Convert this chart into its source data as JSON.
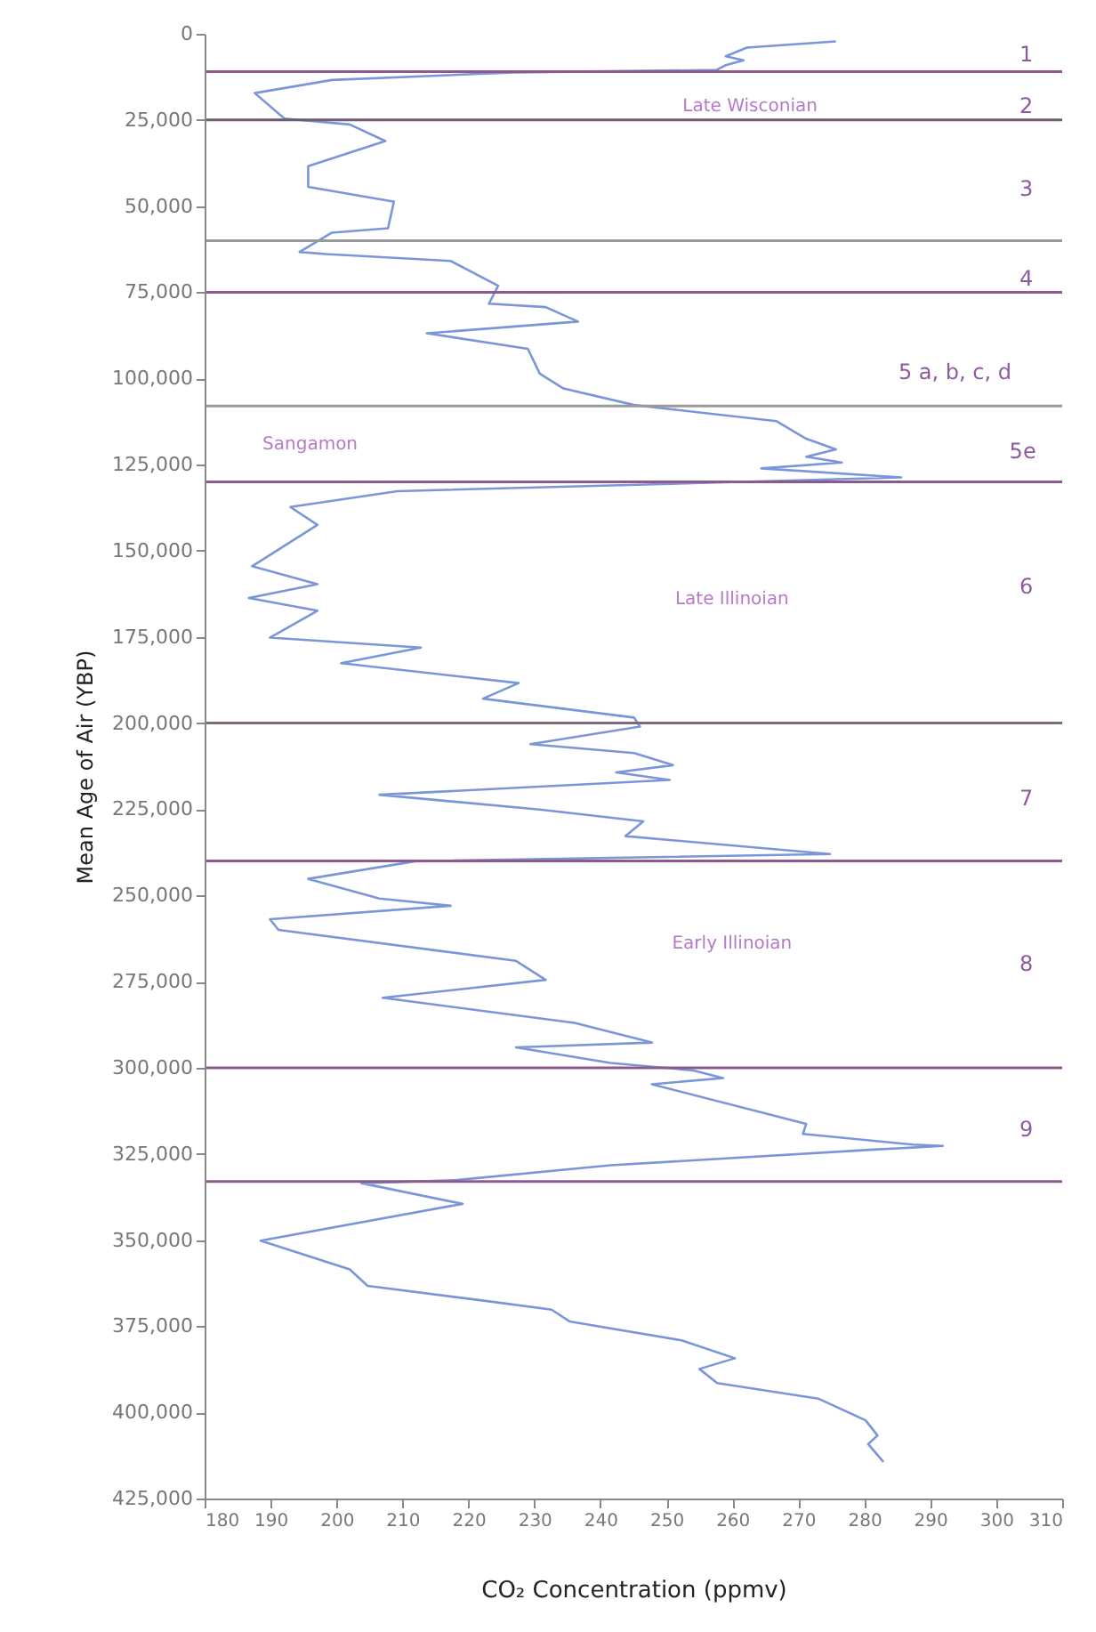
{
  "chart_data": {
    "type": "line",
    "xlabel": "CO₂ Concentration (ppmv)",
    "ylabel": "Mean Age of Air (YBP)",
    "color": "#7b96d8",
    "x": [
      275.7,
      262.2,
      259,
      261.7,
      259,
      257.6,
      227,
      199.3,
      187.6,
      192.1,
      202,
      207.4,
      195.7,
      195.7,
      207.8,
      208.7,
      207.8,
      199.3,
      194.4,
      198.4,
      217.3,
      224.5,
      223.1,
      231.7,
      236.6,
      213.7,
      229,
      230.8,
      234.4,
      245.1,
      266.7,
      271.2,
      275.7,
      271.2,
      276.6,
      264.4,
      285.6,
      254.1,
      209.2,
      193,
      197.1,
      187.2,
      197.1,
      186.7,
      197.1,
      189.9,
      212.8,
      200.7,
      227.6,
      222.2,
      245.1,
      246,
      229.4,
      245.1,
      251,
      242.4,
      250.5,
      206.5,
      230.8,
      246.5,
      243.8,
      274.8,
      211.9,
      195.7,
      206.5,
      217.3,
      189.9,
      191.2,
      227.2,
      231.7,
      207,
      236.1,
      247.8,
      227.2,
      241.5,
      254.1,
      258.6,
      247.8,
      271.2,
      270.7,
      287.4,
      291.9,
      282,
      241.5,
      218.2,
      203.8,
      219.1,
      188.5,
      202,
      204.7,
      223.6,
      232.6,
      235.3,
      252.3,
      260.4,
      255,
      257.7,
      273,
      280.2,
      282,
      280.6,
      282.9
    ],
    "values": [
      2200,
      4000,
      6500,
      7700,
      9100,
      10500,
      11200,
      13400,
      17200,
      24600,
      26300,
      31100,
      38400,
      44400,
      48400,
      48700,
      56400,
      57700,
      63300,
      63900,
      65900,
      73100,
      78300,
      79300,
      83500,
      86900,
      91400,
      98600,
      102900,
      107700,
      112400,
      117500,
      120600,
      122700,
      124400,
      126100,
      128700,
      130400,
      132700,
      137300,
      142500,
      154500,
      159700,
      163700,
      167400,
      175200,
      178100,
      182600,
      188400,
      192900,
      198400,
      201000,
      206100,
      208700,
      212200,
      214300,
      216500,
      220800,
      225100,
      228500,
      232800,
      238000,
      240100,
      245200,
      250900,
      253000,
      256900,
      260000,
      269000,
      274500,
      279700,
      287000,
      292700,
      294100,
      298600,
      300800,
      303000,
      304800,
      316300,
      319200,
      322300,
      322700,
      323700,
      328300,
      332600,
      333500,
      339500,
      350200,
      358500,
      363300,
      367900,
      370200,
      373600,
      379100,
      384300,
      387400,
      391500,
      396000,
      402300,
      406700,
      409200,
      414400
    ],
    "xlim": [
      180,
      310
    ],
    "xticks": [
      180,
      190,
      200,
      210,
      220,
      230,
      240,
      250,
      260,
      270,
      280,
      290,
      300,
      310
    ],
    "ylim": [
      425000,
      0
    ],
    "yticks": [
      0,
      {
        "value": 25000,
        "label": "25,000"
      },
      {
        "value": 50000,
        "label": "50,000"
      },
      {
        "value": 75000,
        "label": "75,000"
      },
      {
        "value": 100000,
        "label": "100,000"
      },
      {
        "value": 125000,
        "label": "125,000"
      },
      {
        "value": 150000,
        "label": "150,000"
      },
      {
        "value": 175000,
        "label": "175,000"
      },
      {
        "value": 200000,
        "label": "200,000"
      },
      {
        "value": 225000,
        "label": "225,000"
      },
      {
        "value": 250000,
        "label": "250,000"
      },
      {
        "value": 275000,
        "label": "275,000"
      },
      {
        "value": 300000,
        "label": "300,000"
      },
      {
        "value": 325000,
        "label": "325,000"
      },
      {
        "value": 350000,
        "label": "350,000"
      },
      {
        "value": 375000,
        "label": "375,000"
      },
      {
        "value": 400000,
        "label": "400,000"
      },
      {
        "value": 425000,
        "label": "425,000"
      }
    ],
    "ref_lines": [
      {
        "axis": "y",
        "value": 11000,
        "color": "#8e5a8e"
      },
      {
        "axis": "y",
        "value": 25000,
        "color": "#6e5a6e"
      },
      {
        "axis": "y",
        "value": 60000,
        "color": "#999999"
      },
      {
        "axis": "y",
        "value": 75000,
        "color": "#8e5a8e"
      },
      {
        "axis": "y",
        "value": 108000,
        "color": "#999999"
      },
      {
        "axis": "y",
        "value": 130000,
        "color": "#8e5a8e"
      },
      {
        "axis": "y",
        "value": 200000,
        "color": "#7a6a7a"
      },
      {
        "axis": "y",
        "value": 240000,
        "color": "#8e5a8e"
      },
      {
        "axis": "y",
        "value": 300000,
        "color": "#8e5a8e"
      },
      {
        "axis": "y",
        "value": 333000,
        "color": "#8e5a8e"
      }
    ],
    "annotations": [
      "1",
      "Late Wisconian",
      "2",
      "3",
      "4",
      "5 a, b, c, d",
      "Sangamon",
      "5e",
      "Late Illinoian",
      "6",
      "7",
      "Early Illinoian",
      "8",
      "9"
    ]
  }
}
